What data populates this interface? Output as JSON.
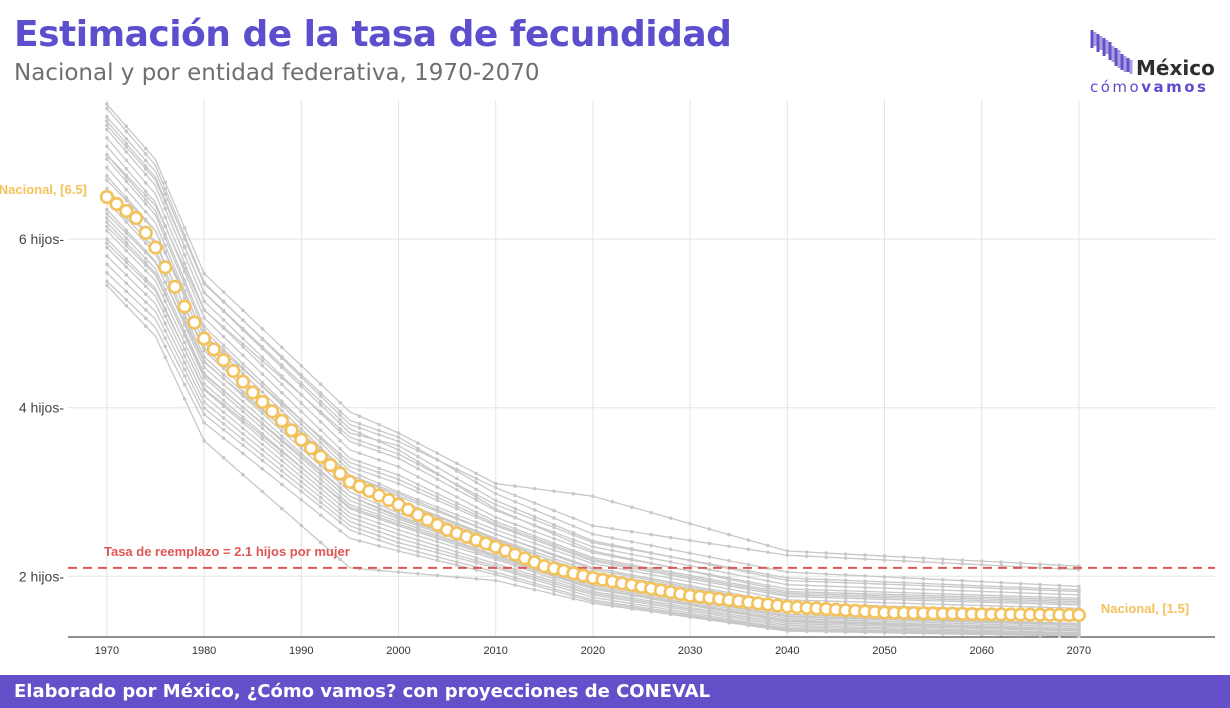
{
  "header": {
    "title": "Estimación de la tasa de fecundidad",
    "subtitle": "Nacional y por entidad federativa, 1970-2070"
  },
  "logo": {
    "brand": "México",
    "tag_light": "cómo",
    "tag_bold": "vamos"
  },
  "footer": {
    "text": "Elaborado por México, ¿Cómo vamos? con proyecciones de CONEVAL"
  },
  "chart_data": {
    "type": "line",
    "xlabel": "",
    "ylabel": "",
    "xlim": [
      1966,
      2084
    ],
    "ylim": [
      1.28,
      7.65
    ],
    "x_ticks": [
      1970,
      1980,
      1990,
      2000,
      2010,
      2020,
      2030,
      2040,
      2050,
      2060,
      2070
    ],
    "y_ticks": [
      {
        "value": 2,
        "label": "2 hijos"
      },
      {
        "value": 4,
        "label": "4 hijos"
      },
      {
        "value": 6,
        "label": "6 hijos"
      }
    ],
    "grid": true,
    "colors": {
      "national": "#f4c25b",
      "states": "#c8c8c8",
      "reference": "#e05555",
      "grid": "#e5e5e5"
    },
    "reference_line": {
      "value": 2.1,
      "label": "Tasa de reemplazo = 2.1 hijos por mujer"
    },
    "annotations": {
      "start": "Nacional, [6.5]",
      "end": "Nacional, [1.5]"
    },
    "national": {
      "name": "Nacional",
      "knots": [
        [
          1970,
          6.5
        ],
        [
          1973,
          6.25
        ],
        [
          1975,
          5.9
        ],
        [
          1978,
          5.2
        ],
        [
          1980,
          4.82
        ],
        [
          1985,
          4.18
        ],
        [
          1990,
          3.62
        ],
        [
          1995,
          3.12
        ],
        [
          2000,
          2.85
        ],
        [
          2005,
          2.55
        ],
        [
          2010,
          2.35
        ],
        [
          2015,
          2.12
        ],
        [
          2020,
          1.98
        ],
        [
          2030,
          1.77
        ],
        [
          2040,
          1.64
        ],
        [
          2050,
          1.57
        ],
        [
          2060,
          1.55
        ],
        [
          2070,
          1.54
        ]
      ]
    },
    "states": [
      {
        "start": 7.6,
        "k1995": 3.95,
        "k2000": 3.7,
        "k2010": 3.1,
        "k2020": 2.95,
        "k2040": 2.3,
        "end": 2.12
      },
      {
        "start": 7.55,
        "k1995": 3.8,
        "k2000": 3.6,
        "k2010": 3.05,
        "k2020": 2.6,
        "k2040": 2.25,
        "end": 2.08
      },
      {
        "start": 7.45,
        "k1995": 3.85,
        "k2000": 3.65,
        "k2010": 2.98,
        "k2020": 2.5,
        "k2040": 2.05,
        "end": 1.88
      },
      {
        "start": 7.4,
        "k1995": 3.7,
        "k2000": 3.55,
        "k2010": 2.9,
        "k2020": 2.42,
        "k2040": 1.95,
        "end": 1.82
      },
      {
        "start": 7.3,
        "k1995": 3.6,
        "k2000": 3.4,
        "k2010": 2.78,
        "k2020": 2.35,
        "k2040": 1.9,
        "end": 1.78
      },
      {
        "start": 7.2,
        "k1995": 3.5,
        "k2000": 3.3,
        "k2010": 2.7,
        "k2020": 2.28,
        "k2040": 1.85,
        "end": 1.74
      },
      {
        "start": 7.1,
        "k1995": 3.4,
        "k2000": 3.2,
        "k2010": 2.65,
        "k2020": 2.22,
        "k2040": 1.8,
        "end": 1.7
      },
      {
        "start": 7.0,
        "k1995": 3.3,
        "k2000": 3.1,
        "k2010": 2.6,
        "k2020": 2.18,
        "k2040": 1.76,
        "end": 1.66
      },
      {
        "start": 6.95,
        "k1995": 3.25,
        "k2000": 3.0,
        "k2010": 2.55,
        "k2020": 2.15,
        "k2040": 1.72,
        "end": 1.62
      },
      {
        "start": 6.85,
        "k1995": 3.2,
        "k2000": 2.95,
        "k2010": 2.5,
        "k2020": 2.1,
        "k2040": 1.68,
        "end": 1.58
      },
      {
        "start": 6.75,
        "k1995": 3.15,
        "k2000": 2.9,
        "k2010": 2.45,
        "k2020": 2.05,
        "k2040": 1.65,
        "end": 1.55
      },
      {
        "start": 6.6,
        "k1995": 3.1,
        "k2000": 2.85,
        "k2010": 2.42,
        "k2020": 2.02,
        "k2040": 1.62,
        "end": 1.5
      },
      {
        "start": 6.5,
        "k1995": 3.05,
        "k2000": 2.8,
        "k2010": 2.38,
        "k2020": 1.98,
        "k2040": 1.58,
        "end": 1.47
      },
      {
        "start": 6.45,
        "k1995": 3.0,
        "k2000": 2.75,
        "k2010": 2.35,
        "k2020": 1.95,
        "k2040": 1.55,
        "end": 1.44
      },
      {
        "start": 6.35,
        "k1995": 2.95,
        "k2000": 2.7,
        "k2010": 2.3,
        "k2020": 1.92,
        "k2040": 1.52,
        "end": 1.42
      },
      {
        "start": 6.25,
        "k1995": 2.9,
        "k2000": 2.68,
        "k2010": 2.28,
        "k2020": 1.9,
        "k2040": 1.5,
        "end": 1.4
      },
      {
        "start": 6.2,
        "k1995": 2.85,
        "k2000": 2.65,
        "k2010": 2.25,
        "k2020": 1.88,
        "k2040": 1.48,
        "end": 1.38
      },
      {
        "start": 6.1,
        "k1995": 2.8,
        "k2000": 2.6,
        "k2010": 2.22,
        "k2020": 1.85,
        "k2040": 1.46,
        "end": 1.36
      },
      {
        "start": 6.0,
        "k1995": 2.75,
        "k2000": 2.55,
        "k2010": 2.2,
        "k2020": 1.82,
        "k2040": 1.44,
        "end": 1.35
      },
      {
        "start": 5.9,
        "k1995": 2.7,
        "k2000": 2.5,
        "k2010": 2.15,
        "k2020": 1.8,
        "k2040": 1.42,
        "end": 1.33
      },
      {
        "start": 5.8,
        "k1995": 2.65,
        "k2000": 2.45,
        "k2010": 2.12,
        "k2020": 1.78,
        "k2040": 1.4,
        "end": 1.32
      },
      {
        "start": 5.7,
        "k1995": 2.6,
        "k2000": 2.4,
        "k2010": 2.1,
        "k2020": 1.75,
        "k2040": 1.38,
        "end": 1.31
      },
      {
        "start": 5.6,
        "k1995": 2.55,
        "k2000": 2.35,
        "k2010": 2.05,
        "k2020": 1.72,
        "k2040": 1.37,
        "end": 1.3
      },
      {
        "start": 5.5,
        "k1995": 2.45,
        "k2000": 2.3,
        "k2010": 2.02,
        "k2020": 1.7,
        "k2040": 1.36,
        "end": 1.3
      },
      {
        "start": 5.45,
        "k1995": 2.1,
        "k2000": 2.05,
        "k2010": 1.95,
        "k2020": 1.68,
        "k2040": 1.35,
        "end": 1.29
      },
      {
        "start": 7.0,
        "k1995": 3.65,
        "k2000": 3.45,
        "k2010": 2.85,
        "k2020": 2.4,
        "k2040": 1.98,
        "end": 1.84
      },
      {
        "start": 6.7,
        "k1995": 3.35,
        "k2000": 3.15,
        "k2010": 2.62,
        "k2020": 2.2,
        "k2040": 1.78,
        "end": 1.68
      },
      {
        "start": 6.3,
        "k1995": 3.1,
        "k2000": 2.88,
        "k2010": 2.44,
        "k2020": 2.0,
        "k2040": 1.6,
        "end": 1.49
      },
      {
        "start": 5.95,
        "k1995": 2.82,
        "k2000": 2.62,
        "k2010": 2.24,
        "k2020": 1.86,
        "k2040": 1.47,
        "end": 1.37
      },
      {
        "start": 7.35,
        "k1995": 3.75,
        "k2000": 3.5,
        "k2010": 2.8,
        "k2020": 2.3,
        "k2040": 1.82,
        "end": 1.72
      },
      {
        "start": 6.55,
        "k1995": 3.2,
        "k2000": 2.98,
        "k2010": 2.5,
        "k2020": 2.08,
        "k2040": 1.66,
        "end": 1.56
      },
      {
        "start": 6.15,
        "k1995": 2.95,
        "k2000": 2.72,
        "k2010": 2.3,
        "k2020": 1.93,
        "k2040": 1.53,
        "end": 1.43
      }
    ]
  }
}
